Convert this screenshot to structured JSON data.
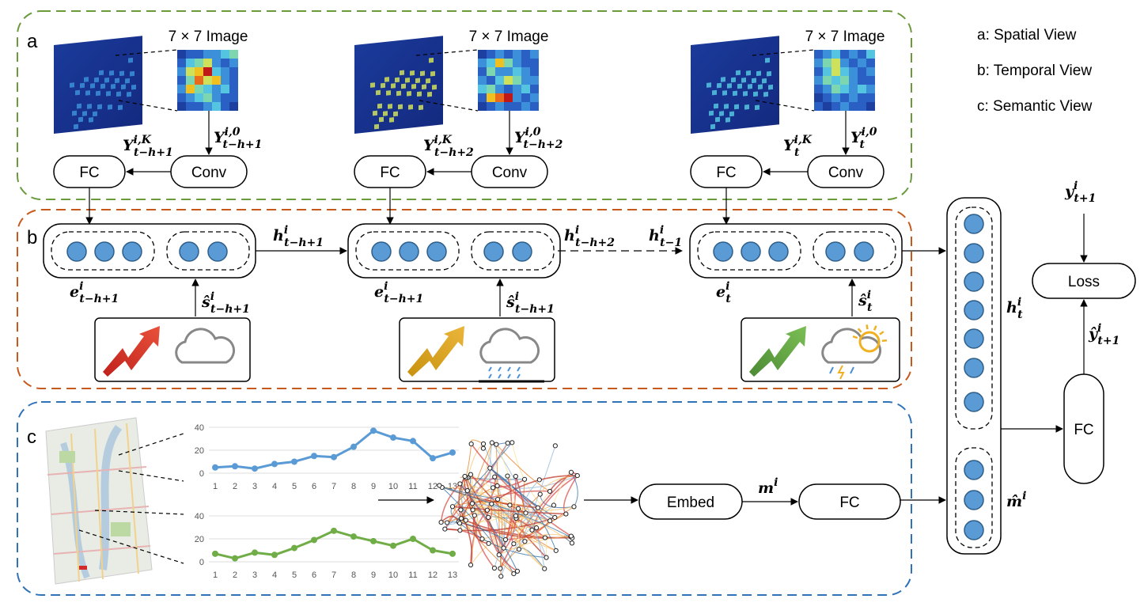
{
  "legend": {
    "a": "a: Spatial View",
    "b": "b: Temporal View",
    "c": "c: Semantic View"
  },
  "section_letters": {
    "a": "a",
    "b": "b",
    "c": "c"
  },
  "image_caption": "7 × 7 Image",
  "fc_label": "FC",
  "conv_label": "Conv",
  "embed_label": "Embed",
  "loss_label": "Loss",
  "math": {
    "Y": "Y",
    "h": "h",
    "e": "e",
    "s": "ŝ",
    "m": "m",
    "mhat": "m̂",
    "y": "y",
    "yhat": "ŷ",
    "i": "i",
    "i0": "i,0",
    "iK": "i,K",
    "t": "t",
    "t1": "t+1",
    "th1": "t−h+1",
    "th2": "t−h+2",
    "tm1": "t−1"
  },
  "chart_data": [
    {
      "type": "line",
      "x": [
        1,
        2,
        3,
        4,
        5,
        6,
        7,
        8,
        9,
        10,
        11,
        12,
        13
      ],
      "tick_labels": [
        "1",
        "2",
        "3",
        "4",
        "5",
        "6",
        "7",
        "8",
        "9",
        "10",
        "11",
        "12",
        "13"
      ],
      "series": [
        {
          "values": [
            5,
            6,
            4,
            8,
            10,
            15,
            14,
            23,
            37,
            31,
            28,
            13,
            18
          ],
          "color": "#5b9bd5"
        }
      ],
      "ylim": [
        0,
        40
      ],
      "yticks": [
        0,
        20,
        40
      ],
      "grid": true
    },
    {
      "type": "line",
      "x": [
        1,
        2,
        3,
        4,
        5,
        6,
        7,
        8,
        9,
        10,
        11,
        12,
        13
      ],
      "tick_labels": [
        "1",
        "2",
        "3",
        "4",
        "5",
        "6",
        "7",
        "8",
        "9",
        "10",
        "11",
        "12",
        "13"
      ],
      "series": [
        {
          "values": [
            7,
            3,
            8,
            6,
            12,
            19,
            27,
            22,
            18,
            14,
            20,
            10,
            7
          ],
          "color": "#70ad47"
        }
      ],
      "ylim": [
        0,
        40
      ],
      "yticks": [
        0,
        20,
        40
      ],
      "grid": true
    }
  ]
}
